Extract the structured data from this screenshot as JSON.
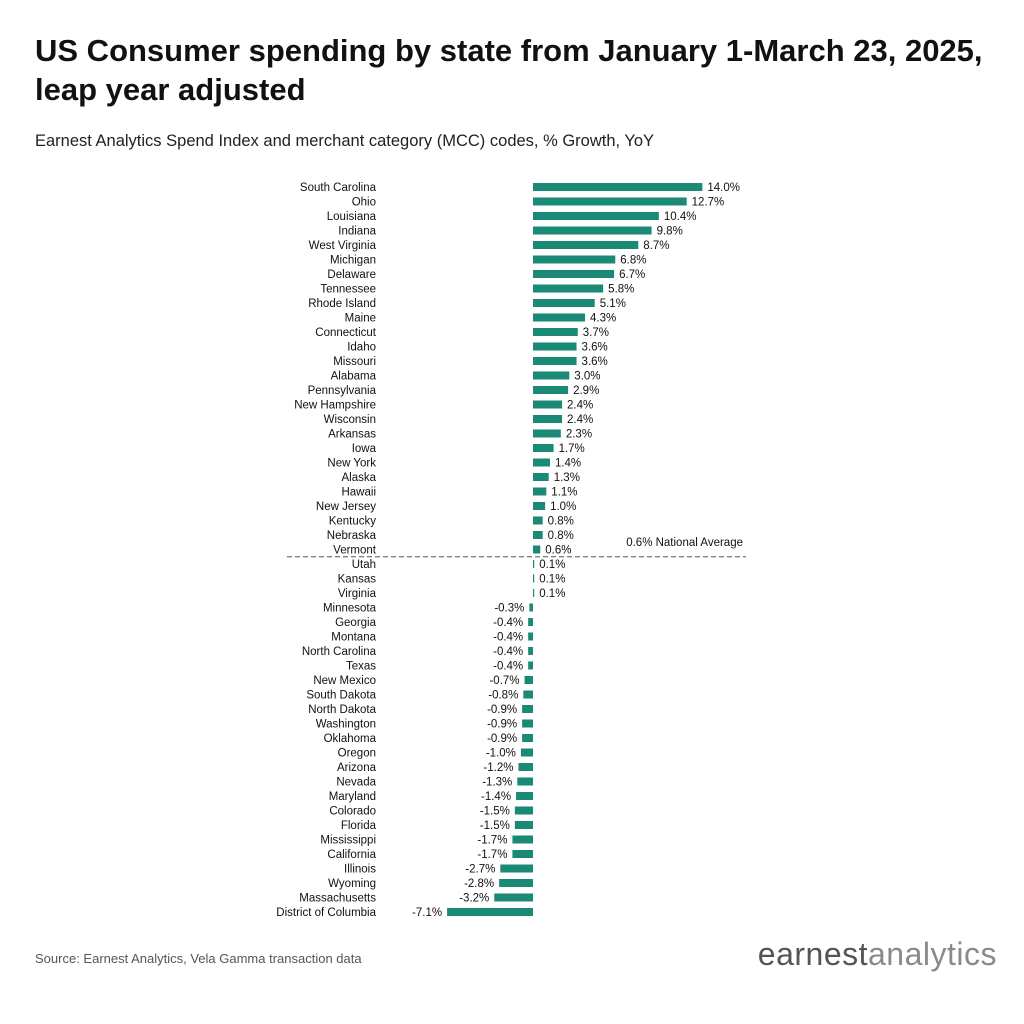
{
  "title": "US Consumer spending by state from January 1-March 23, 2025, leap year adjusted",
  "subtitle": "Earnest Analytics Spend Index and merchant category (MCC) codes, % Growth, YoY",
  "source": "Source: Earnest Analytics, Vela Gamma transaction data",
  "logo": {
    "part1": "earnest",
    "part2": "analytics"
  },
  "colors": {
    "bar": "#1a8a76",
    "reference_line": "#555555",
    "text": "#111111"
  },
  "chart_data": {
    "type": "bar",
    "orientation": "horizontal",
    "value_suffix": "%",
    "categories": [
      "South Carolina",
      "Ohio",
      "Louisiana",
      "Indiana",
      "West Virginia",
      "Michigan",
      "Delaware",
      "Tennessee",
      "Rhode Island",
      "Maine",
      "Connecticut",
      "Idaho",
      "Missouri",
      "Alabama",
      "Pennsylvania",
      "New Hampshire",
      "Wisconsin",
      "Arkansas",
      "Iowa",
      "New York",
      "Alaska",
      "Hawaii",
      "New Jersey",
      "Kentucky",
      "Nebraska",
      "Vermont",
      "Utah",
      "Kansas",
      "Virginia",
      "Minnesota",
      "Georgia",
      "Montana",
      "North Carolina",
      "Texas",
      "New Mexico",
      "South Dakota",
      "North Dakota",
      "Washington",
      "Oklahoma",
      "Oregon",
      "Arizona",
      "Nevada",
      "Maryland",
      "Colorado",
      "Florida",
      "Mississippi",
      "California",
      "Illinois",
      "Wyoming",
      "Massachusetts",
      "District of Columbia"
    ],
    "values": [
      14.0,
      12.7,
      10.4,
      9.8,
      8.7,
      6.8,
      6.7,
      5.8,
      5.1,
      4.3,
      3.7,
      3.6,
      3.6,
      3.0,
      2.9,
      2.4,
      2.4,
      2.3,
      1.7,
      1.4,
      1.3,
      1.1,
      1.0,
      0.8,
      0.8,
      0.6,
      0.1,
      0.1,
      0.1,
      -0.3,
      -0.4,
      -0.4,
      -0.4,
      -0.4,
      -0.7,
      -0.8,
      -0.9,
      -0.9,
      -0.9,
      -1.0,
      -1.2,
      -1.3,
      -1.4,
      -1.5,
      -1.5,
      -1.7,
      -1.7,
      -2.7,
      -2.8,
      -3.2,
      -7.1
    ],
    "labels": [
      "14.0%",
      "12.7%",
      "10.4%",
      "9.8%",
      "8.7%",
      "6.8%",
      "6.7%",
      "5.8%",
      "5.1%",
      "4.3%",
      "3.7%",
      "3.6%",
      "3.6%",
      "3.0%",
      "2.9%",
      "2.4%",
      "2.4%",
      "2.3%",
      "1.7%",
      "1.4%",
      "1.3%",
      "1.1%",
      "1.0%",
      "0.8%",
      "0.8%",
      "0.6%",
      "0.1%",
      "0.1%",
      "0.1%",
      "-0.3%",
      "-0.4%",
      "-0.4%",
      "-0.4%",
      "-0.4%",
      "-0.7%",
      "-0.8%",
      "-0.9%",
      "-0.9%",
      "-0.9%",
      "-1.0%",
      "-1.2%",
      "-1.3%",
      "-1.4%",
      "-1.5%",
      "-1.5%",
      "-1.7%",
      "-1.7%",
      "-2.7%",
      "-2.8%",
      "-3.2%",
      "-7.1%"
    ],
    "reference_line": {
      "value": 0.6,
      "label": "0.6% National Average",
      "style": "dashed"
    },
    "xlim": [
      -7.1,
      14.0
    ],
    "grid": false,
    "legend": "none"
  }
}
